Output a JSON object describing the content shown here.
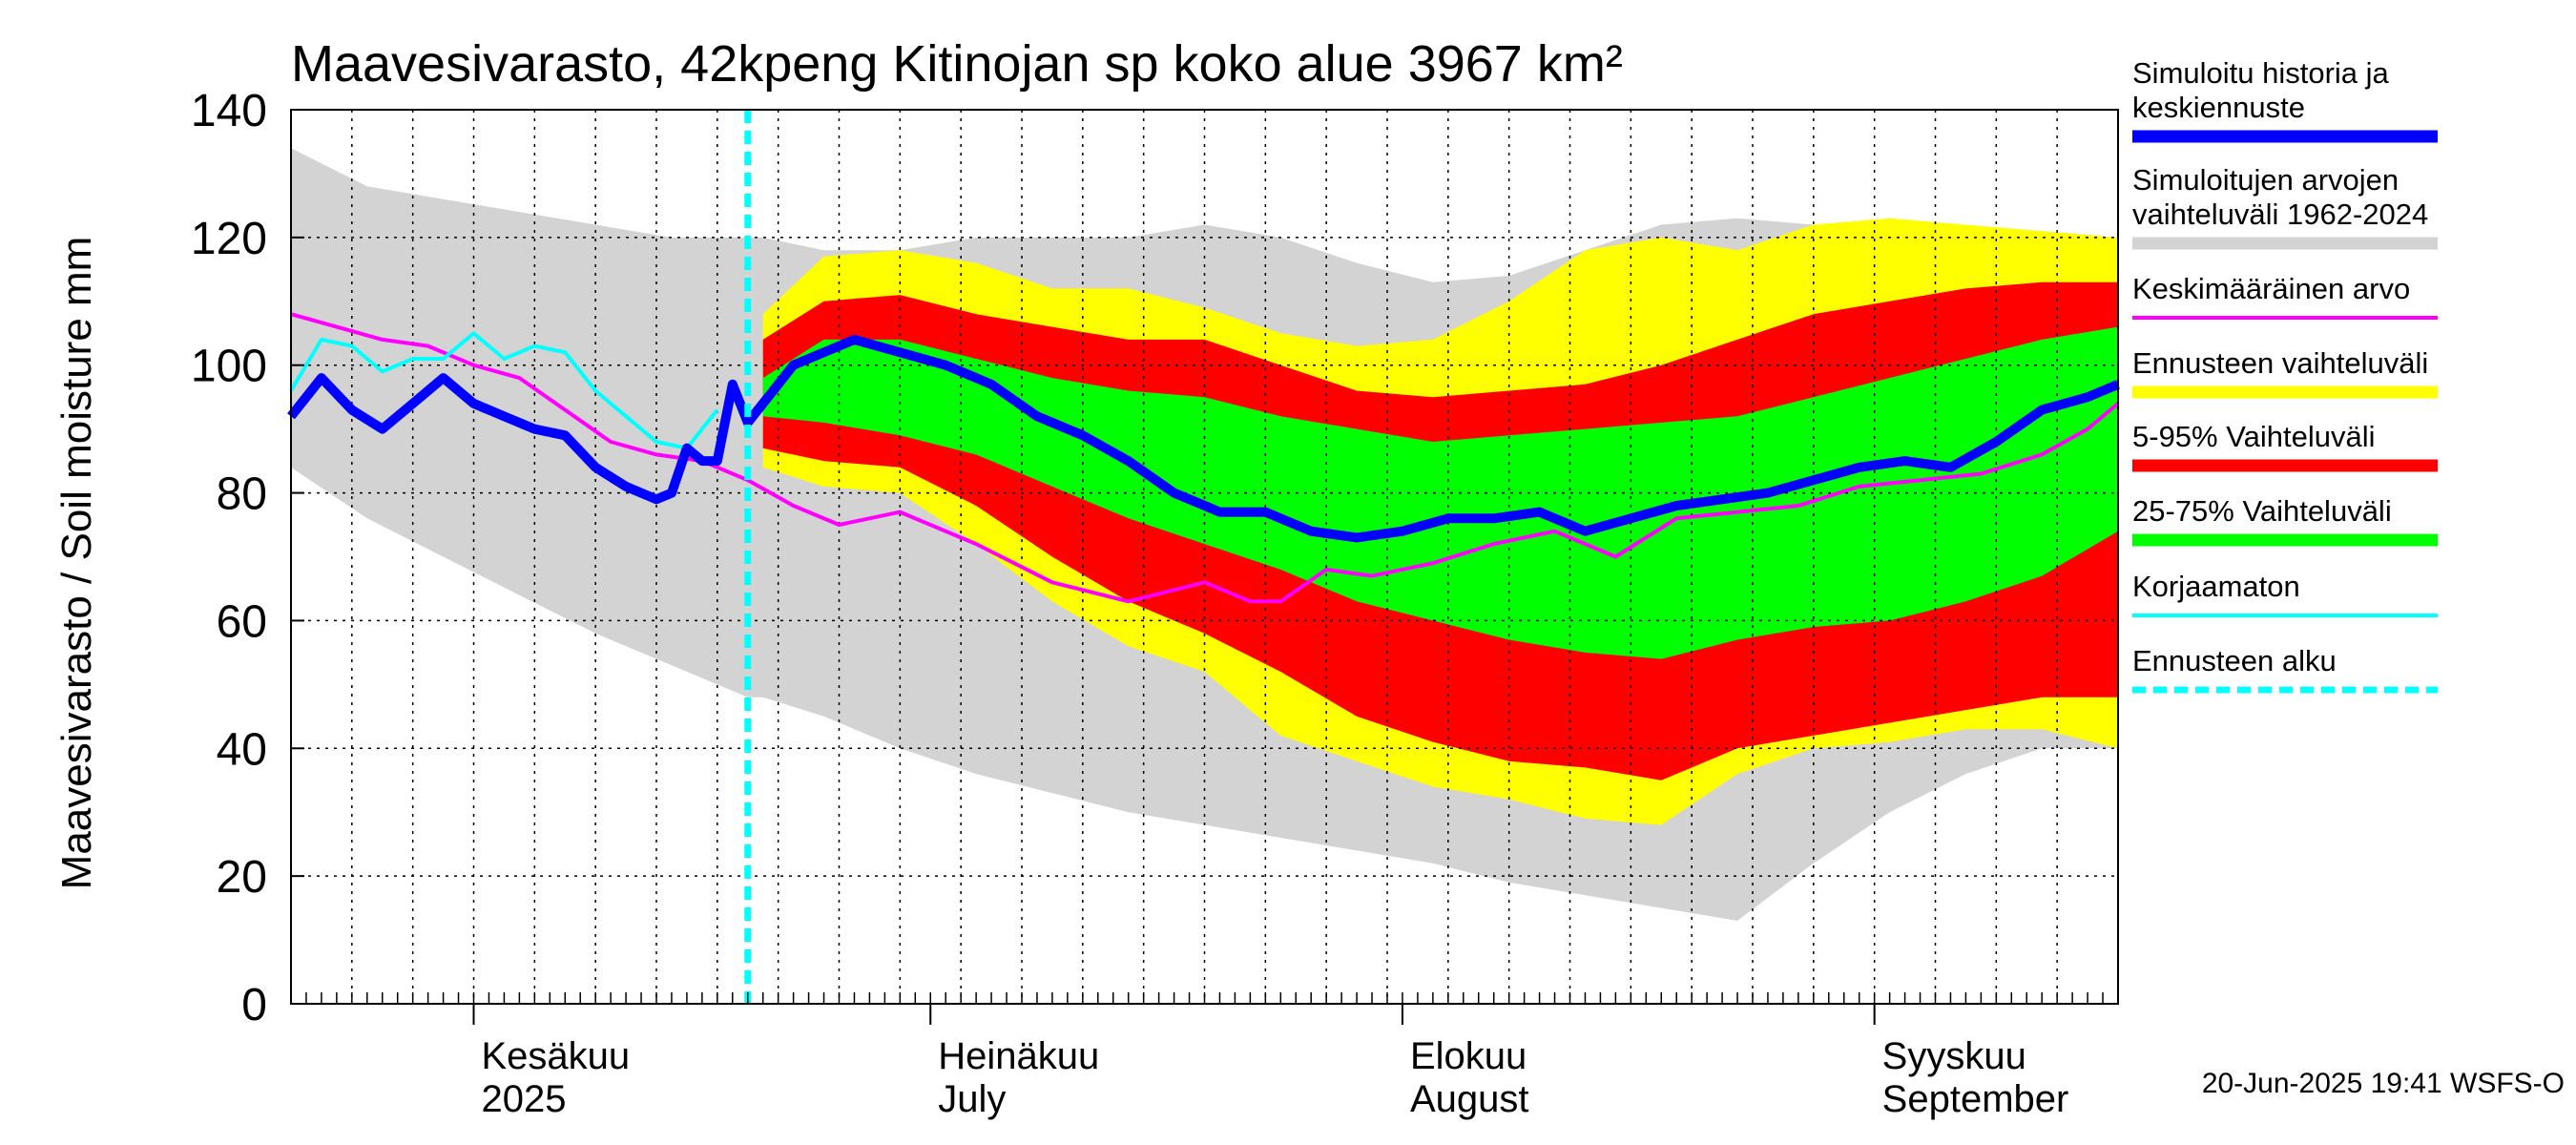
{
  "chart_data": {
    "type": "area",
    "title": "Maavesivarasto, 42kpeng Kitinojan sp koko alue 3967 km²",
    "ylabel": "Maavesivarasto / Soil moisture   mm",
    "ylim": [
      0,
      140
    ],
    "yticks": [
      0,
      20,
      40,
      60,
      80,
      100,
      120,
      140
    ],
    "x_days_range": [
      0,
      120
    ],
    "x_note": "day 0 = 2025-05-20, day 30 = 2025-06-19 (forecast start)",
    "month_ticks": [
      {
        "day": 12,
        "label_fi": "Kesäkuu",
        "label_en": "2025"
      },
      {
        "day": 42,
        "label_fi": "Heinäkuu",
        "label_en": "July"
      },
      {
        "day": 73,
        "label_fi": "Elokuu",
        "label_en": "August"
      },
      {
        "day": 104,
        "label_fi": "Syyskuu",
        "label_en": "September"
      }
    ],
    "forecast_start_day": 30,
    "band_days": [
      0,
      5,
      10,
      15,
      20,
      25,
      30,
      31,
      35,
      40,
      45,
      50,
      55,
      60,
      65,
      70,
      75,
      80,
      85,
      90,
      95,
      100,
      105,
      110,
      115,
      120
    ],
    "series": [
      {
        "name": "Simuloitujen arvojen vaihteluväli 1962-2024",
        "kind": "band",
        "color": "#d3d3d3",
        "upper": [
          134,
          128,
          126,
          124,
          122,
          120,
          120,
          120,
          118,
          118,
          120,
          120,
          120,
          122,
          120,
          116,
          113,
          114,
          118,
          122,
          123,
          122,
          121,
          121,
          121,
          120
        ],
        "lower": [
          84,
          76,
          70,
          64,
          58,
          53,
          48,
          48,
          45,
          40,
          36,
          33,
          30,
          28,
          26,
          24,
          22,
          19,
          17,
          15,
          13,
          22,
          30,
          36,
          40,
          40
        ]
      },
      {
        "name": "Ennusteen vaihteluväli",
        "kind": "band",
        "color": "#ffff00",
        "upper": [
          null,
          null,
          null,
          null,
          null,
          null,
          null,
          108,
          117,
          118,
          116,
          112,
          112,
          109,
          105,
          103,
          104,
          110,
          118,
          120,
          118,
          122,
          123,
          122,
          121,
          120
        ],
        "lower": [
          null,
          null,
          null,
          null,
          null,
          null,
          null,
          84,
          81,
          80,
          72,
          63,
          56,
          52,
          42,
          38,
          34,
          32,
          29,
          28,
          36,
          40,
          41,
          43,
          43,
          40
        ]
      },
      {
        "name": "5-95% Vaihteluväli",
        "kind": "band",
        "color": "#ff0000",
        "upper": [
          null,
          null,
          null,
          null,
          null,
          null,
          null,
          104,
          110,
          111,
          108,
          106,
          104,
          104,
          100,
          96,
          95,
          96,
          97,
          100,
          104,
          108,
          110,
          112,
          113,
          113
        ],
        "lower": [
          null,
          null,
          null,
          null,
          null,
          null,
          null,
          87,
          85,
          84,
          78,
          70,
          63,
          58,
          52,
          45,
          41,
          38,
          37,
          35,
          40,
          42,
          44,
          46,
          48,
          48
        ]
      },
      {
        "name": "25-75% Vaihteluväli",
        "kind": "band",
        "color": "#00ff00",
        "upper": [
          null,
          null,
          null,
          null,
          null,
          null,
          null,
          98,
          104,
          104,
          101,
          98,
          96,
          95,
          92,
          90,
          88,
          89,
          90,
          91,
          92,
          95,
          98,
          101,
          104,
          106
        ],
        "lower": [
          null,
          null,
          null,
          null,
          null,
          null,
          null,
          92,
          91,
          89,
          86,
          81,
          76,
          72,
          68,
          63,
          60,
          57,
          55,
          54,
          57,
          59,
          60,
          63,
          67,
          74
        ]
      },
      {
        "name": "Keskimääräinen arvo",
        "kind": "line",
        "color": "#ff00ff",
        "width": 4,
        "x": [
          0,
          3,
          6,
          9,
          12,
          15,
          18,
          21,
          24,
          27,
          30,
          33,
          36,
          40,
          45,
          50,
          55,
          60,
          63,
          65,
          68,
          71,
          75,
          79,
          83,
          87,
          91,
          95,
          99,
          103,
          107,
          111,
          115,
          118,
          120
        ],
        "y": [
          108,
          106,
          104,
          103,
          100,
          98,
          93,
          88,
          86,
          85,
          82,
          78,
          75,
          77,
          72,
          66,
          63,
          66,
          63,
          63,
          68,
          67,
          69,
          72,
          74,
          70,
          76,
          77,
          78,
          81,
          82,
          83,
          86,
          90,
          94
        ]
      },
      {
        "name": "Korjaamaton",
        "kind": "line",
        "color": "#00ffff",
        "width": 4,
        "x": [
          0,
          2,
          4,
          6,
          8,
          10,
          12,
          14,
          16,
          18,
          20,
          22,
          24,
          26,
          28
        ],
        "y": [
          96,
          104,
          103,
          99,
          101,
          101,
          105,
          101,
          103,
          102,
          96,
          92,
          88,
          87,
          93
        ]
      },
      {
        "name": "Simuloitu historia ja keskiennuste",
        "kind": "line",
        "color": "#0000ff",
        "width": 10,
        "x": [
          0,
          2,
          4,
          6,
          8,
          10,
          12,
          14,
          16,
          18,
          20,
          22,
          24,
          25,
          26,
          27,
          28,
          29,
          30,
          31,
          33,
          35,
          37,
          40,
          43,
          46,
          49,
          52,
          55,
          58,
          61,
          64,
          67,
          70,
          73,
          76,
          79,
          82,
          85,
          88,
          91,
          94,
          97,
          100,
          103,
          106,
          109,
          112,
          115,
          118,
          120
        ],
        "y": [
          92,
          98,
          93,
          90,
          94,
          98,
          94,
          92,
          90,
          89,
          84,
          81,
          79,
          80,
          87,
          85,
          85,
          97,
          91,
          94,
          100,
          102,
          104,
          102,
          100,
          97,
          92,
          89,
          85,
          80,
          77,
          77,
          74,
          73,
          74,
          76,
          76,
          77,
          74,
          76,
          78,
          79,
          80,
          82,
          84,
          85,
          84,
          88,
          93,
          95,
          97
        ]
      }
    ]
  },
  "legend": [
    {
      "label": "Simuloitu historia ja keskiennuste",
      "color": "#0000ff",
      "style": "thick"
    },
    {
      "label": "Simuloitujen arvojen vaihteluväli 1962-2024",
      "color": "#d3d3d3",
      "style": "thick"
    },
    {
      "label": "Keskimääräinen arvo",
      "color": "#ff00ff",
      "style": "thin"
    },
    {
      "label": "Ennusteen vaihteluväli",
      "color": "#ffff00",
      "style": "thick"
    },
    {
      "label": "5-95% Vaihteluväli",
      "color": "#ff0000",
      "style": "thick"
    },
    {
      "label": "25-75% Vaihteluväli",
      "color": "#00ff00",
      "style": "thick"
    },
    {
      "label": "Korjaamaton",
      "color": "#00ffff",
      "style": "thin"
    },
    {
      "label": "Ennusteen alku",
      "color": "#00ffff",
      "style": "dashed"
    }
  ],
  "footer": "20-Jun-2025 19:41 WSFS-O"
}
